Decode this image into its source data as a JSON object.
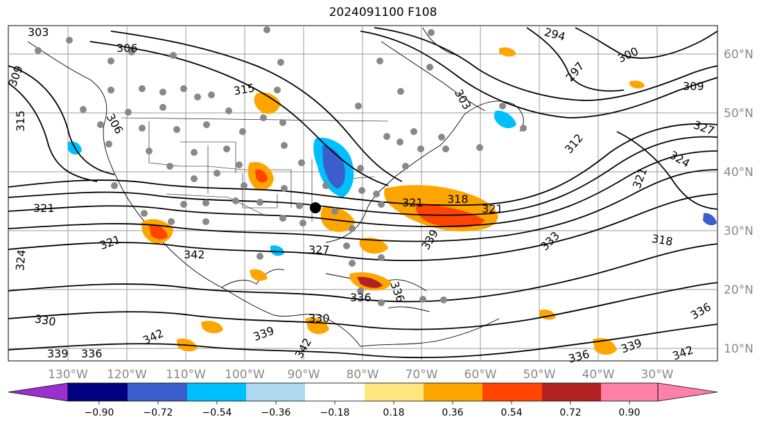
{
  "title": "2024091100 F108",
  "map": {
    "lon_labels": [
      "130°W",
      "120°W",
      "110°W",
      "100°W",
      "90°W",
      "80°W",
      "70°W",
      "60°W",
      "50°W",
      "40°W",
      "30°W"
    ],
    "lat_labels": [
      "60°N",
      "50°N",
      "40°N",
      "30°N",
      "20°N",
      "10°N"
    ],
    "contour_labels": [
      {
        "text": "303"
      },
      {
        "text": "306"
      },
      {
        "text": "306"
      },
      {
        "text": "315"
      },
      {
        "text": "315"
      },
      {
        "text": "309"
      },
      {
        "text": "321"
      },
      {
        "text": "321"
      },
      {
        "text": "324"
      },
      {
        "text": "342"
      },
      {
        "text": "327"
      },
      {
        "text": "330"
      },
      {
        "text": "339"
      },
      {
        "text": "336"
      },
      {
        "text": "342"
      },
      {
        "text": "342"
      },
      {
        "text": "339"
      },
      {
        "text": "336"
      },
      {
        "text": "294"
      },
      {
        "text": "300"
      },
      {
        "text": "297"
      },
      {
        "text": "303"
      },
      {
        "text": "309"
      },
      {
        "text": "312"
      },
      {
        "text": "327"
      },
      {
        "text": "324"
      },
      {
        "text": "321"
      },
      {
        "text": "318"
      },
      {
        "text": "333"
      },
      {
        "text": "339"
      },
      {
        "text": "321"
      },
      {
        "text": "318"
      },
      {
        "text": "321"
      },
      {
        "text": "336"
      },
      {
        "text": "339"
      },
      {
        "text": "342"
      },
      {
        "text": "336"
      },
      {
        "text": "330"
      },
      {
        "text": "336"
      }
    ]
  },
  "colorbar": {
    "ticks": [
      "−0.90",
      "−0.72",
      "−0.54",
      "−0.36",
      "−0.18",
      "0.18",
      "0.36",
      "0.54",
      "0.72",
      "0.90"
    ],
    "colors": [
      "#9b30d0",
      "#000080",
      "#3a5fcd",
      "#00bfff",
      "#add8f0",
      "#ffffff",
      "#ffe680",
      "#ffa500",
      "#ff4500",
      "#b22222",
      "#ff80a8"
    ]
  }
}
